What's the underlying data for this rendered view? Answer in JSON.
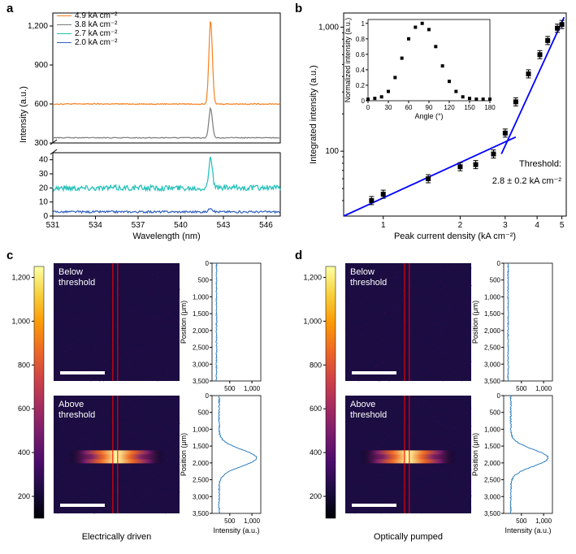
{
  "labels": {
    "a": "a",
    "b": "b",
    "c": "c",
    "d": "d"
  },
  "panelA": {
    "type": "line-spectra",
    "xlabel": "Wavelength (nm)",
    "ylabel": "Intensity (a.u.)",
    "x_min": 531,
    "x_max": 547,
    "xtick_vals": [
      531,
      534,
      537,
      540,
      543,
      546
    ],
    "upper": {
      "y_min": 300,
      "y_max": 1300,
      "ytick_vals": [
        300,
        600,
        900,
        1200
      ]
    },
    "lower": {
      "y_min": 0,
      "y_max": 45,
      "ytick_vals": [
        0,
        10,
        20,
        30,
        40
      ]
    },
    "series": [
      {
        "label": "4.9 kA cm⁻²",
        "color": "#f58220",
        "baseline": 600,
        "peak_x": 542.1,
        "peak_y": 1250,
        "noise": 8,
        "region": "upper"
      },
      {
        "label": "3.8 kA cm⁻²",
        "color": "#7a7a7a",
        "baseline": 340,
        "peak_x": 542.1,
        "peak_y": 570,
        "noise": 6,
        "region": "upper"
      },
      {
        "label": "2.7 kA cm⁻²",
        "color": "#1fbfb8",
        "baseline": 20,
        "peak_x": 542.1,
        "peak_y": 43,
        "noise": 4,
        "region": "lower"
      },
      {
        "label": "2.0 kA cm⁻²",
        "color": "#3060c0",
        "baseline": 3,
        "peak_x": 542.1,
        "peak_y": 6,
        "noise": 1.5,
        "region": "lower"
      }
    ]
  },
  "panelB": {
    "type": "loglog-scatter",
    "xlabel": "Peak current density (kA cm⁻²)",
    "ylabel": "Integrated intensity (a.u.)",
    "x_min": 0.7,
    "x_max": 5.2,
    "y_min": 30,
    "y_max": 1300,
    "xticks": [
      1,
      2,
      3,
      4,
      5
    ],
    "yticks": [
      100,
      1000
    ],
    "yticks_labels": [
      "100",
      "1,000"
    ],
    "points": [
      {
        "x": 0.9,
        "y": 40
      },
      {
        "x": 1.0,
        "y": 45
      },
      {
        "x": 1.5,
        "y": 60
      },
      {
        "x": 2.0,
        "y": 75
      },
      {
        "x": 2.3,
        "y": 78
      },
      {
        "x": 2.7,
        "y": 95
      },
      {
        "x": 3.0,
        "y": 140
      },
      {
        "x": 3.3,
        "y": 250
      },
      {
        "x": 3.7,
        "y": 420
      },
      {
        "x": 4.1,
        "y": 600
      },
      {
        "x": 4.4,
        "y": 780
      },
      {
        "x": 4.8,
        "y": 980
      },
      {
        "x": 5.0,
        "y": 1050
      }
    ],
    "fit_line1": [
      [
        0.7,
        30
      ],
      [
        3.3,
        130
      ]
    ],
    "fit_line2": [
      [
        2.9,
        95
      ],
      [
        5.1,
        1200
      ]
    ],
    "fit_color": "#0000ff",
    "threshold_label": "Threshold:",
    "threshold_value": "2.8 ± 0.2 kA cm⁻²",
    "inset": {
      "xlabel": "Angle (°)",
      "ylabel": "Normalized intensity (a.u.)",
      "x_min": 0,
      "x_max": 180,
      "y_min": 0,
      "y_max": 1.05,
      "xticks": [
        0,
        30,
        60,
        90,
        120,
        150,
        180
      ],
      "yticks": [
        0,
        0.2,
        0.4,
        0.6,
        0.8,
        1.0
      ],
      "points": [
        {
          "x": 0,
          "y": 0.02
        },
        {
          "x": 10,
          "y": 0.03
        },
        {
          "x": 20,
          "y": 0.05
        },
        {
          "x": 30,
          "y": 0.12
        },
        {
          "x": 40,
          "y": 0.3
        },
        {
          "x": 50,
          "y": 0.55
        },
        {
          "x": 60,
          "y": 0.8
        },
        {
          "x": 70,
          "y": 0.95
        },
        {
          "x": 80,
          "y": 1.0
        },
        {
          "x": 90,
          "y": 0.92
        },
        {
          "x": 100,
          "y": 0.7
        },
        {
          "x": 110,
          "y": 0.45
        },
        {
          "x": 120,
          "y": 0.25
        },
        {
          "x": 130,
          "y": 0.12
        },
        {
          "x": 140,
          "y": 0.05
        },
        {
          "x": 150,
          "y": 0.03
        },
        {
          "x": 160,
          "y": 0.02
        },
        {
          "x": 170,
          "y": 0.02
        },
        {
          "x": 180,
          "y": 0.02
        }
      ]
    }
  },
  "panelsCD": {
    "colorbar": {
      "ticks": [
        200,
        400,
        600,
        800,
        1000,
        1200
      ],
      "tick_labels": [
        "200",
        "400",
        "600",
        "800",
        "1,000",
        "1,200"
      ]
    },
    "colors": {
      "bg": "#2a0a4a",
      "stops": [
        "#000004",
        "#1b0c41",
        "#4a0c6b",
        "#781c6d",
        "#a52c60",
        "#cf4446",
        "#ed6925",
        "#fb9b06",
        "#f7d13d",
        "#fcffa4"
      ]
    },
    "position_label": "Position (μm)",
    "intensity_label": "Intensity (a.u.)",
    "pos_ticks": [
      0,
      500,
      1000,
      1500,
      2000,
      2500,
      3000,
      3500
    ],
    "pos_tick_labels": [
      "0",
      "500",
      "1,000",
      "1,500",
      "2,000",
      "2,500",
      "3,000",
      "3,500"
    ],
    "int_ticks_c": [
      500,
      1000
    ],
    "int_ticks_c_labels": [
      "500",
      "1,000"
    ],
    "int_ticks_d": [
      500,
      1000
    ],
    "int_ticks_d_labels": [
      "500",
      "1,000"
    ],
    "below": "Below\nthreshold",
    "above": "Above\nthreshold",
    "caption_c": "Electrically driven",
    "caption_d": "Optically pumped",
    "profile_below_baseline": 200,
    "profile_below_noise": 25,
    "profile_above_baseline": 260,
    "profile_above_noise": 30,
    "profile_peak_pos": 1850,
    "profile_peak_value": 1100,
    "profile_peak_width": 250,
    "profile_color": "#2f7fbf"
  }
}
